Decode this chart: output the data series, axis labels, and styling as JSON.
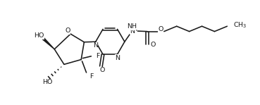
{
  "bg_color": "#ffffff",
  "line_color": "#1a1a1a",
  "lw": 1.15,
  "font_size": 6.8,
  "figsize": [
    3.69,
    1.49
  ],
  "dpi": 100,
  "xlim": [
    0,
    10.5
  ],
  "ylim": [
    -1.6,
    4.0
  ]
}
